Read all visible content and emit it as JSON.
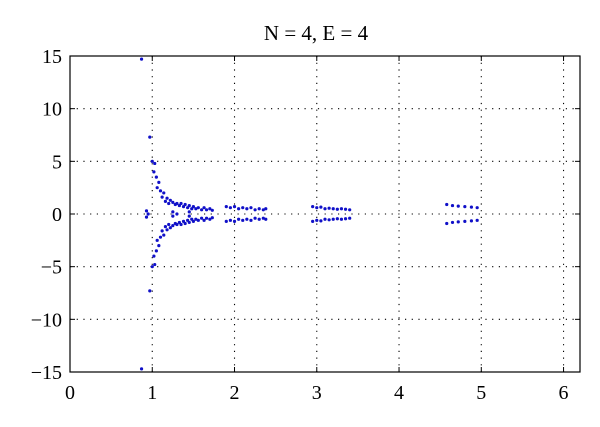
{
  "chart_data": {
    "type": "scatter",
    "title": "N = 4, E = 4",
    "xlabel": "",
    "ylabel": "",
    "xlim": [
      0,
      6.2
    ],
    "ylim": [
      -15,
      15
    ],
    "xticks": [
      0,
      1,
      2,
      3,
      4,
      5,
      6
    ],
    "yticks": [
      15,
      10,
      5,
      0,
      -5,
      -10,
      -15
    ],
    "xtick_labels": [
      "0",
      "1",
      "2",
      "3",
      "4",
      "5",
      "6"
    ],
    "ytick_labels": [
      "15",
      "10",
      "5",
      "0",
      "−5",
      "−10",
      "−15"
    ],
    "grid": true,
    "grid_style": "dotted",
    "legend": "none",
    "colors": {
      "points": "#1010c8",
      "axis": "#000000",
      "grid": "#000000"
    },
    "series": [
      {
        "marker": "dot",
        "color": "#1010c8",
        "points": [
          [
            0.87,
            14.7
          ],
          [
            0.87,
            -14.7
          ],
          [
            0.97,
            7.3
          ],
          [
            0.97,
            -7.3
          ],
          [
            1.0,
            5.0
          ],
          [
            1.0,
            -5.0
          ],
          [
            1.03,
            4.8
          ],
          [
            1.03,
            -4.8
          ],
          [
            1.02,
            4.0
          ],
          [
            1.02,
            -4.0
          ],
          [
            1.05,
            3.5
          ],
          [
            1.05,
            -3.5
          ],
          [
            1.08,
            3.0
          ],
          [
            1.08,
            -3.0
          ],
          [
            1.06,
            2.5
          ],
          [
            1.06,
            -2.5
          ],
          [
            1.1,
            2.2
          ],
          [
            1.1,
            -2.2
          ],
          [
            1.14,
            2.0
          ],
          [
            1.14,
            -2.0
          ],
          [
            1.12,
            1.6
          ],
          [
            1.12,
            -1.6
          ],
          [
            1.18,
            1.5
          ],
          [
            1.18,
            -1.5
          ],
          [
            1.16,
            1.2
          ],
          [
            1.16,
            -1.2
          ],
          [
            1.22,
            1.3
          ],
          [
            1.22,
            -1.3
          ],
          [
            1.2,
            1.0
          ],
          [
            1.2,
            -1.0
          ],
          [
            1.25,
            1.1
          ],
          [
            1.25,
            -1.1
          ],
          [
            1.28,
            0.9
          ],
          [
            1.28,
            -0.9
          ],
          [
            1.3,
            1.0
          ],
          [
            1.3,
            -1.0
          ],
          [
            1.33,
            0.8
          ],
          [
            1.33,
            -0.8
          ],
          [
            1.35,
            1.0
          ],
          [
            1.35,
            -1.0
          ],
          [
            1.38,
            0.7
          ],
          [
            1.38,
            -0.7
          ],
          [
            1.4,
            0.9
          ],
          [
            1.4,
            -0.9
          ],
          [
            1.43,
            0.6
          ],
          [
            1.43,
            -0.6
          ],
          [
            1.45,
            0.8
          ],
          [
            1.45,
            -0.8
          ],
          [
            1.48,
            0.5
          ],
          [
            1.48,
            -0.5
          ],
          [
            1.5,
            0.7
          ],
          [
            1.5,
            -0.7
          ],
          [
            1.53,
            0.5
          ],
          [
            1.53,
            -0.5
          ],
          [
            1.56,
            0.6
          ],
          [
            1.56,
            -0.6
          ],
          [
            1.6,
            0.4
          ],
          [
            1.6,
            -0.4
          ],
          [
            1.63,
            0.6
          ],
          [
            1.63,
            -0.6
          ],
          [
            1.66,
            0.4
          ],
          [
            1.66,
            -0.4
          ],
          [
            1.7,
            0.5
          ],
          [
            1.7,
            -0.5
          ],
          [
            1.73,
            0.35
          ],
          [
            1.73,
            -0.35
          ],
          [
            0.93,
            0.3
          ],
          [
            0.93,
            -0.3
          ],
          [
            0.95,
            0.0
          ],
          [
            1.25,
            0.2
          ],
          [
            1.25,
            -0.2
          ],
          [
            1.3,
            0.0
          ],
          [
            1.45,
            0.2
          ],
          [
            1.45,
            -0.2
          ],
          [
            1.9,
            0.7
          ],
          [
            1.9,
            -0.7
          ],
          [
            1.95,
            0.6
          ],
          [
            1.95,
            -0.6
          ],
          [
            2.0,
            0.7
          ],
          [
            2.0,
            -0.7
          ],
          [
            2.05,
            0.5
          ],
          [
            2.05,
            -0.5
          ],
          [
            2.1,
            0.6
          ],
          [
            2.1,
            -0.6
          ],
          [
            2.15,
            0.5
          ],
          [
            2.15,
            -0.5
          ],
          [
            2.2,
            0.6
          ],
          [
            2.2,
            -0.6
          ],
          [
            2.25,
            0.4
          ],
          [
            2.25,
            -0.4
          ],
          [
            2.3,
            0.5
          ],
          [
            2.3,
            -0.5
          ],
          [
            2.35,
            0.4
          ],
          [
            2.35,
            -0.4
          ],
          [
            2.38,
            0.5
          ],
          [
            2.38,
            -0.5
          ],
          [
            2.95,
            0.7
          ],
          [
            2.95,
            -0.7
          ],
          [
            3.0,
            0.6
          ],
          [
            3.0,
            -0.6
          ],
          [
            3.05,
            0.65
          ],
          [
            3.05,
            -0.65
          ],
          [
            3.1,
            0.5
          ],
          [
            3.1,
            -0.5
          ],
          [
            3.15,
            0.55
          ],
          [
            3.15,
            -0.55
          ],
          [
            3.2,
            0.5
          ],
          [
            3.2,
            -0.5
          ],
          [
            3.25,
            0.45
          ],
          [
            3.25,
            -0.45
          ],
          [
            3.3,
            0.5
          ],
          [
            3.3,
            -0.5
          ],
          [
            3.35,
            0.45
          ],
          [
            3.35,
            -0.45
          ],
          [
            3.4,
            0.4
          ],
          [
            3.4,
            -0.4
          ],
          [
            4.58,
            0.9
          ],
          [
            4.58,
            -0.9
          ],
          [
            4.65,
            0.8
          ],
          [
            4.65,
            -0.8
          ],
          [
            4.72,
            0.75
          ],
          [
            4.72,
            -0.75
          ],
          [
            4.8,
            0.7
          ],
          [
            4.8,
            -0.7
          ],
          [
            4.88,
            0.65
          ],
          [
            4.88,
            -0.65
          ],
          [
            4.95,
            0.6
          ],
          [
            4.95,
            -0.6
          ]
        ]
      }
    ]
  }
}
